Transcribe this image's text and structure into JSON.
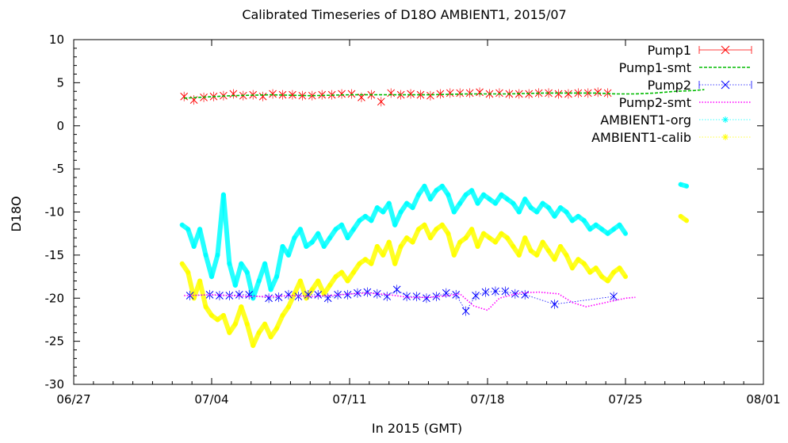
{
  "chart_data": {
    "type": "scatter",
    "title": "Calibrated Timeseries of D18O AMBIENT1, 2015/07",
    "xlabel": "In 2015 (GMT)",
    "ylabel": "D18O",
    "x_tick_labels": [
      "06/27",
      "07/04",
      "07/11",
      "07/18",
      "07/25",
      "08/01"
    ],
    "x_ticks_day": [
      0,
      7,
      14,
      21,
      28,
      35
    ],
    "x_range_day": [
      0,
      35
    ],
    "x_origin_label": "06/27",
    "y_tick_labels": [
      "10",
      "5",
      "0",
      "-5",
      "-10",
      "-15",
      "-20",
      "-25",
      "-30"
    ],
    "ylim": [
      -30,
      10
    ],
    "grid": false,
    "legend_position": "top-right",
    "series": [
      {
        "name": "Pump1",
        "marker": "x",
        "color": "#ff0000",
        "line": "none",
        "errorbars": true,
        "x": [
          5.6,
          6.1,
          6.6,
          7.1,
          7.6,
          8.1,
          8.6,
          9.1,
          9.6,
          10.1,
          10.6,
          11.1,
          11.6,
          12.1,
          12.6,
          13.1,
          13.6,
          14.1,
          14.6,
          15.1,
          15.6,
          16.1,
          16.6,
          17.1,
          17.6,
          18.1,
          18.6,
          19.1,
          19.6,
          20.1,
          20.6,
          21.1,
          21.6,
          22.1,
          22.6,
          23.1,
          23.6,
          24.1,
          24.6,
          25.1,
          25.6,
          26.1,
          26.6,
          27.1
        ],
        "y": [
          3.4,
          3.0,
          3.3,
          3.4,
          3.5,
          3.7,
          3.5,
          3.6,
          3.4,
          3.7,
          3.6,
          3.6,
          3.5,
          3.5,
          3.6,
          3.6,
          3.7,
          3.7,
          3.3,
          3.6,
          2.8,
          3.8,
          3.6,
          3.7,
          3.6,
          3.5,
          3.7,
          3.8,
          3.8,
          3.8,
          3.9,
          3.7,
          3.8,
          3.7,
          3.7,
          3.7,
          3.8,
          3.8,
          3.7,
          3.7,
          3.8,
          3.8,
          3.9,
          3.8
        ]
      },
      {
        "name": "Pump1-smt",
        "marker": "none",
        "color": "#00bb00",
        "line": "dashed",
        "x": [
          5.6,
          8.0,
          10.0,
          12.0,
          14.0,
          16.0,
          18.0,
          20.0,
          22.0,
          24.0,
          25.5,
          26.5,
          27.5,
          28.5,
          29.5,
          30.5,
          31.5,
          32.0
        ],
        "y": [
          3.2,
          3.5,
          3.6,
          3.5,
          3.6,
          3.6,
          3.6,
          3.7,
          3.7,
          3.8,
          3.8,
          3.8,
          3.7,
          3.7,
          3.8,
          4.0,
          4.1,
          4.2
        ]
      },
      {
        "name": "Pump2",
        "marker": "x",
        "color": "#0000ff",
        "line": "dotted",
        "errorbars": true,
        "x": [
          5.9,
          6.9,
          7.4,
          7.9,
          8.4,
          8.9,
          9.9,
          10.4,
          10.9,
          11.4,
          11.9,
          12.4,
          12.9,
          13.4,
          13.9,
          14.4,
          14.9,
          15.4,
          15.9,
          16.4,
          16.9,
          17.4,
          17.9,
          18.4,
          18.9,
          19.4,
          19.9,
          20.4,
          20.9,
          21.4,
          21.9,
          22.4,
          22.9,
          24.4,
          27.4
        ],
        "y": [
          -19.7,
          -19.6,
          -19.7,
          -19.7,
          -19.6,
          -19.6,
          -20.0,
          -19.9,
          -19.6,
          -19.8,
          -19.6,
          -19.6,
          -20.0,
          -19.6,
          -19.6,
          -19.4,
          -19.3,
          -19.5,
          -19.8,
          -19.0,
          -19.8,
          -19.8,
          -20.0,
          -19.8,
          -19.4,
          -19.6,
          -21.5,
          -19.7,
          -19.3,
          -19.2,
          -19.2,
          -19.5,
          -19.6,
          -20.7,
          -19.8
        ]
      },
      {
        "name": "Pump2-smt",
        "marker": "none",
        "color": "#ff00ff",
        "line": "dotted",
        "x": [
          5.6,
          7.0,
          8.0,
          9.0,
          10.0,
          11.0,
          12.0,
          13.0,
          14.0,
          15.0,
          16.0,
          17.0,
          18.0,
          19.0,
          19.6,
          20.3,
          21.0,
          21.6,
          22.6,
          23.6,
          24.6,
          25.3,
          26.0,
          27.0,
          28.0,
          28.5
        ],
        "y": [
          -19.7,
          -19.6,
          -19.7,
          -19.8,
          -19.8,
          -19.7,
          -19.8,
          -19.7,
          -19.5,
          -19.4,
          -19.6,
          -19.9,
          -19.9,
          -19.7,
          -19.5,
          -20.9,
          -21.4,
          -20.0,
          -19.4,
          -19.3,
          -19.5,
          -20.5,
          -21.0,
          -20.5,
          -20.0,
          -19.9
        ]
      },
      {
        "name": "AMBIENT1-org",
        "marker": "*",
        "color": "#00ffff",
        "line": "none",
        "x": [
          5.5,
          5.8,
          6.1,
          6.4,
          6.7,
          7.0,
          7.3,
          7.6,
          7.9,
          8.2,
          8.5,
          8.8,
          9.1,
          9.4,
          9.7,
          10.0,
          10.3,
          10.6,
          10.9,
          11.2,
          11.5,
          11.8,
          12.1,
          12.4,
          12.7,
          13.0,
          13.3,
          13.6,
          13.9,
          14.2,
          14.5,
          14.8,
          15.1,
          15.4,
          15.7,
          16.0,
          16.3,
          16.6,
          16.9,
          17.2,
          17.5,
          17.8,
          18.1,
          18.4,
          18.7,
          19.0,
          19.3,
          19.6,
          19.9,
          20.2,
          20.5,
          20.8,
          21.1,
          21.4,
          21.7,
          22.0,
          22.3,
          22.6,
          22.9,
          23.2,
          23.5,
          23.8,
          24.1,
          24.4,
          24.7,
          25.0,
          25.3,
          25.6,
          25.9,
          26.2,
          26.5,
          26.8,
          27.1,
          27.4,
          27.7,
          28.0,
          30.8,
          31.1
        ],
        "y": [
          -11.5,
          -12.0,
          -14.0,
          -12.0,
          -15.0,
          -17.5,
          -15.0,
          -8.0,
          -16.0,
          -18.5,
          -16.0,
          -17.0,
          -20.0,
          -18.0,
          -16.0,
          -19.0,
          -17.5,
          -14.0,
          -15.0,
          -13.0,
          -12.0,
          -14.0,
          -13.5,
          -12.5,
          -14.0,
          -13.0,
          -12.0,
          -11.5,
          -13.0,
          -12.0,
          -11.0,
          -10.5,
          -11.0,
          -9.5,
          -10.0,
          -9.0,
          -11.5,
          -10.0,
          -9.0,
          -9.5,
          -8.0,
          -7.0,
          -8.5,
          -7.5,
          -7.0,
          -8.0,
          -10.0,
          -9.0,
          -8.0,
          -7.5,
          -9.0,
          -8.0,
          -8.5,
          -9.0,
          -8.0,
          -8.5,
          -9.0,
          -10.0,
          -8.5,
          -9.5,
          -10.0,
          -9.0,
          -9.5,
          -10.5,
          -9.5,
          -10.0,
          -11.0,
          -10.5,
          -11.0,
          -12.0,
          -11.5,
          -12.0,
          -12.5,
          -12.0,
          -11.5,
          -12.5,
          -6.8,
          -7.0
        ]
      },
      {
        "name": "AMBIENT1-calib",
        "marker": "*",
        "color": "#ffff00",
        "line": "none",
        "x": [
          5.5,
          5.8,
          6.1,
          6.4,
          6.7,
          7.0,
          7.3,
          7.6,
          7.9,
          8.2,
          8.5,
          8.8,
          9.1,
          9.4,
          9.7,
          10.0,
          10.3,
          10.6,
          10.9,
          11.2,
          11.5,
          11.8,
          12.1,
          12.4,
          12.7,
          13.0,
          13.3,
          13.6,
          13.9,
          14.2,
          14.5,
          14.8,
          15.1,
          15.4,
          15.7,
          16.0,
          16.3,
          16.6,
          16.9,
          17.2,
          17.5,
          17.8,
          18.1,
          18.4,
          18.7,
          19.0,
          19.3,
          19.6,
          19.9,
          20.2,
          20.5,
          20.8,
          21.1,
          21.4,
          21.7,
          22.0,
          22.3,
          22.6,
          22.9,
          23.2,
          23.5,
          23.8,
          24.1,
          24.4,
          24.7,
          25.0,
          25.3,
          25.6,
          25.9,
          26.2,
          26.5,
          26.8,
          27.1,
          27.4,
          27.7,
          28.0,
          30.8,
          31.1
        ],
        "y": [
          -16.0,
          -17.0,
          -20.0,
          -18.0,
          -21.0,
          -22.0,
          -22.5,
          -22.0,
          -24.0,
          -23.0,
          -21.0,
          -23.0,
          -25.5,
          -24.0,
          -23.0,
          -24.5,
          -23.5,
          -22.0,
          -21.0,
          -19.5,
          -18.0,
          -20.0,
          -19.0,
          -18.0,
          -19.5,
          -18.5,
          -17.5,
          -17.0,
          -18.0,
          -17.0,
          -16.0,
          -15.5,
          -16.0,
          -14.0,
          -15.0,
          -13.5,
          -16.0,
          -14.0,
          -13.0,
          -13.5,
          -12.0,
          -11.5,
          -13.0,
          -12.0,
          -11.5,
          -12.5,
          -15.0,
          -13.5,
          -13.0,
          -12.0,
          -14.0,
          -12.5,
          -13.0,
          -13.5,
          -12.5,
          -13.0,
          -14.0,
          -15.0,
          -13.0,
          -14.5,
          -15.0,
          -13.5,
          -14.5,
          -15.5,
          -14.0,
          -15.0,
          -16.5,
          -15.5,
          -16.0,
          -17.0,
          -16.5,
          -17.5,
          -18.0,
          -17.0,
          -16.5,
          -17.5,
          -10.5,
          -11.0
        ]
      }
    ]
  }
}
